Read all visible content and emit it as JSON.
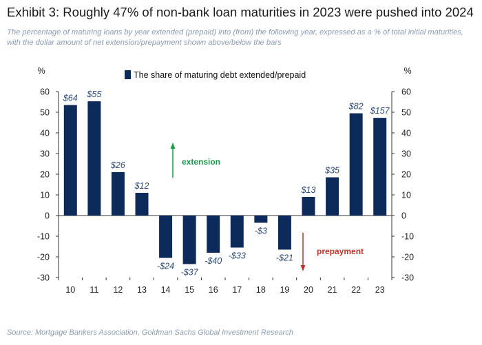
{
  "header": {
    "title": "Exhibit 3: Roughly 47% of non-bank loan maturities in 2023 were pushed into 2024",
    "subtitle": "The percentage of maturing loans by year extended (prepaid) into (from) the following year, expressed as a % of total initial maturities, with the dollar amount of net extension/prepayment shown above/below the bars"
  },
  "footer": {
    "source": "Source: Mortgage Bankers Association, Goldman Sachs Global Investment Research"
  },
  "colors": {
    "bar": "#0d2b5a",
    "extension_arrow": "#1a9a4a",
    "prepayment_arrow": "#c0352b"
  },
  "chart_data": {
    "type": "bar",
    "title": "",
    "xlabel": "",
    "ylabel": "%",
    "ylabel_right": "%",
    "ylim": [
      -30,
      60
    ],
    "yticks": [
      60,
      50,
      40,
      30,
      20,
      10,
      0,
      -10,
      -20,
      -30
    ],
    "grid": false,
    "legend_position": "top",
    "categories": [
      "10",
      "11",
      "12",
      "13",
      "14",
      "15",
      "16",
      "17",
      "18",
      "19",
      "20",
      "21",
      "22",
      "23"
    ],
    "series": [
      {
        "name": "The share of maturing debt extended/prepaid",
        "values": [
          53.5,
          55.3,
          21,
          11,
          -20.5,
          -23.5,
          -18,
          -15.5,
          -3.5,
          -16.5,
          9,
          18.5,
          49.5,
          47.3
        ],
        "labels": [
          "$64",
          "$55",
          "$26",
          "$12",
          "-$24",
          "-$37",
          "-$40",
          "-$33",
          "-$3",
          "-$21",
          "$13",
          "$35",
          "$82",
          "$157"
        ]
      }
    ],
    "annotations": {
      "extension": "extension",
      "prepayment": "prepayment"
    }
  }
}
